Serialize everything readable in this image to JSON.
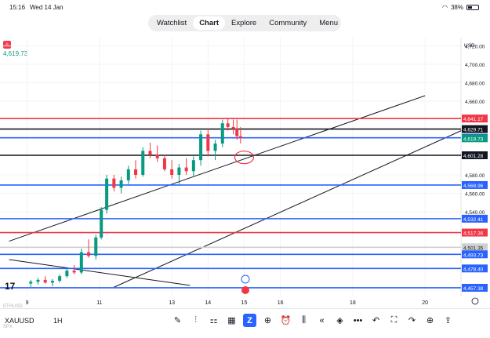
{
  "status": {
    "time": "15:16",
    "date": "Wed 14 Jan",
    "battery": "38%"
  },
  "nav": {
    "tabs": [
      "Watchlist",
      "Chart",
      "Explore",
      "Community",
      "Menu"
    ],
    "active": "Chart"
  },
  "header": {
    "price": "4,619.73",
    "currency": "USD"
  },
  "footer": {
    "symbol": "XAUUSD",
    "timeframe": "1H",
    "hint1": "ETHUSD",
    "hint2": "SPX"
  },
  "chart_data": {
    "type": "candlestick",
    "yaxis_ticks": [
      4720,
      4700,
      4680,
      4660,
      4580,
      4560,
      4540
    ],
    "xaxis_ticks": [
      {
        "label": "9",
        "day": 9
      },
      {
        "label": "11",
        "day": 11
      },
      {
        "label": "13",
        "day": 13
      },
      {
        "label": "14",
        "day": 14
      },
      {
        "label": "15",
        "day": 15
      },
      {
        "label": "16",
        "day": 16
      },
      {
        "label": "18",
        "day": 18
      },
      {
        "label": "20",
        "day": 20
      }
    ],
    "hlines": [
      {
        "value": 4641.17,
        "label": "4,641.17",
        "color": "#f23645"
      },
      {
        "value": 4629.71,
        "label": "4,629.71",
        "color": "#131722"
      },
      {
        "value": 4620.31,
        "label": "4,620.31",
        "color": "#2962ff"
      },
      {
        "value": 4601.28,
        "label": "4,601.28",
        "color": "#131722"
      },
      {
        "value": 4568.96,
        "label": "4,568.96",
        "color": "#2962ff"
      },
      {
        "value": 4532.41,
        "label": "4,532.41",
        "color": "#2962ff"
      },
      {
        "value": 4517.36,
        "label": "4,517.36",
        "color": "#f23645"
      },
      {
        "value": 4501.35,
        "label": "4,501.35",
        "color": "#cfcfcf"
      },
      {
        "value": 4493.73,
        "label": "4,493.73",
        "color": "#2962ff"
      },
      {
        "value": 4478.4,
        "label": "4,478.40",
        "color": "#2962ff"
      },
      {
        "value": 4457.38,
        "label": "4,457.38",
        "color": "#2962ff"
      }
    ],
    "last_price": {
      "value": 4619.73,
      "label": "4,619.73",
      "color": "#089981"
    },
    "trendlines": [
      {
        "from": [
          8.5,
          4508
        ],
        "to": [
          20,
          4666
        ]
      },
      {
        "from": [
          11.4,
          4458
        ],
        "to": [
          21,
          4628
        ]
      },
      {
        "from": [
          8.5,
          4488
        ],
        "to": [
          13.5,
          4460
        ]
      }
    ],
    "candles": [
      [
        9.1,
        4462,
        4466,
        4458,
        4464
      ],
      [
        9.3,
        4464,
        4468,
        4461,
        4466
      ],
      [
        9.5,
        4466,
        4470,
        4462,
        4463
      ],
      [
        9.7,
        4463,
        4467,
        4459,
        4465
      ],
      [
        9.9,
        4465,
        4472,
        4463,
        4470
      ],
      [
        10.1,
        4470,
        4478,
        4468,
        4476
      ],
      [
        10.3,
        4476,
        4482,
        4472,
        4474
      ],
      [
        10.5,
        4474,
        4500,
        4472,
        4496
      ],
      [
        10.7,
        4496,
        4510,
        4490,
        4492
      ],
      [
        10.9,
        4492,
        4515,
        4488,
        4512
      ],
      [
        11.05,
        4512,
        4545,
        4510,
        4542
      ],
      [
        11.2,
        4542,
        4580,
        4538,
        4576
      ],
      [
        11.4,
        4576,
        4580,
        4562,
        4566
      ],
      [
        11.6,
        4566,
        4578,
        4560,
        4574
      ],
      [
        11.8,
        4574,
        4590,
        4570,
        4586
      ],
      [
        12.0,
        4586,
        4596,
        4576,
        4580
      ],
      [
        12.2,
        4580,
        4610,
        4578,
        4606
      ],
      [
        12.4,
        4606,
        4615,
        4598,
        4602
      ],
      [
        12.6,
        4602,
        4612,
        4594,
        4598
      ],
      [
        12.8,
        4598,
        4602,
        4584,
        4586
      ],
      [
        13.0,
        4586,
        4596,
        4576,
        4580
      ],
      [
        13.2,
        4580,
        4592,
        4570,
        4588
      ],
      [
        13.4,
        4588,
        4598,
        4580,
        4584
      ],
      [
        13.6,
        4584,
        4600,
        4578,
        4596
      ],
      [
        13.8,
        4596,
        4628,
        4590,
        4624
      ],
      [
        14.0,
        4624,
        4630,
        4600,
        4606
      ],
      [
        14.2,
        4606,
        4618,
        4596,
        4614
      ],
      [
        14.4,
        4614,
        4640,
        4610,
        4636
      ],
      [
        14.55,
        4636,
        4642,
        4628,
        4632
      ],
      [
        14.7,
        4632,
        4640,
        4624,
        4630
      ],
      [
        14.8,
        4630,
        4640,
        4618,
        4622
      ],
      [
        14.9,
        4622,
        4632,
        4614,
        4619.73
      ]
    ]
  }
}
